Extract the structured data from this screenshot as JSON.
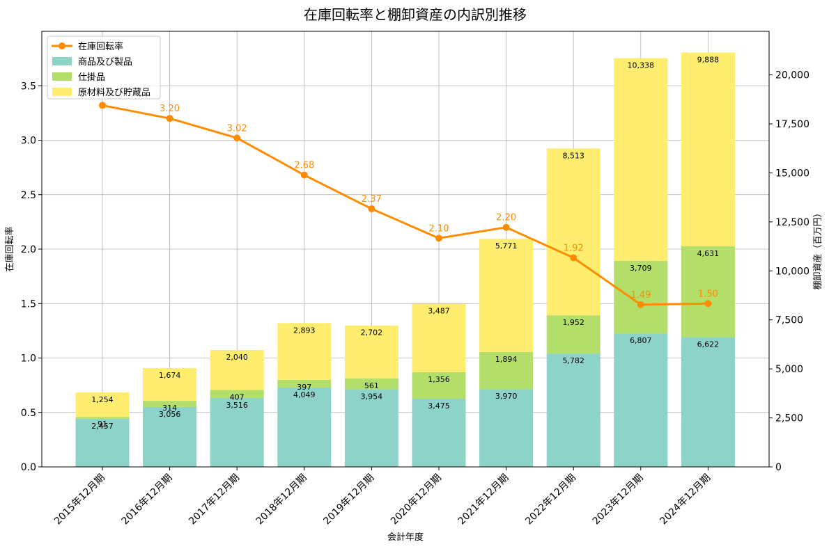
{
  "chart_data": {
    "type": "bar",
    "title": "在庫回転率と棚卸資産の内訳別推移",
    "xlabel": "会計年度",
    "ylabel_left": "在庫回転率",
    "ylabel_right": "棚卸資産（百万円）",
    "ylim_left": [
      0,
      4.0
    ],
    "ylim_right": [
      0,
      22222
    ],
    "yticks_left": [
      0.0,
      0.5,
      1.0,
      1.5,
      2.0,
      2.5,
      3.0,
      3.5
    ],
    "yticks_left_labels": [
      "0.0",
      "0.5",
      "1.0",
      "1.5",
      "2.0",
      "2.5",
      "3.0",
      "3.5"
    ],
    "yticks_right": [
      0,
      2500,
      5000,
      7500,
      10000,
      12500,
      15000,
      17500,
      20000
    ],
    "yticks_right_labels": [
      "0",
      "2,500",
      "5,000",
      "7,500",
      "10,000",
      "12,500",
      "15,000",
      "17,500",
      "20,000"
    ],
    "grid": true,
    "legend_position": "top-left",
    "categories": [
      "2015年12月期",
      "2016年12月期",
      "2017年12月期",
      "2018年12月期",
      "2019年12月期",
      "2020年12月期",
      "2021年12月期",
      "2022年12月期",
      "2023年12月期",
      "2024年12月期"
    ],
    "stacked_series": [
      {
        "name": "商品及び製品",
        "color": "#8dd3c7",
        "values": [
          2457,
          3056,
          3516,
          4049,
          3954,
          3475,
          3970,
          5782,
          6807,
          6622
        ],
        "labels": [
          "2,457",
          "3,056",
          "3,516",
          "4,049",
          "3,954",
          "3,475",
          "3,970",
          "5,782",
          "6,807",
          "6,622"
        ]
      },
      {
        "name": "仕掛品",
        "color": "#b3de69",
        "values": [
          91,
          314,
          407,
          397,
          561,
          1356,
          1894,
          1952,
          3709,
          4631
        ],
        "labels": [
          "91",
          "314",
          "407",
          "397",
          "561",
          "1,356",
          "1,894",
          "1,952",
          "3,709",
          "4,631"
        ]
      },
      {
        "name": "原材料及び貯蔵品",
        "color": "#ffed6f",
        "values": [
          1254,
          1674,
          2040,
          2893,
          2702,
          3487,
          5771,
          8513,
          10338,
          9888
        ],
        "labels": [
          "1,254",
          "1,674",
          "2,040",
          "2,893",
          "2,702",
          "3,487",
          "5,771",
          "8,513",
          "10,338",
          "9,888"
        ]
      }
    ],
    "line_series": {
      "name": "在庫回転率",
      "color": "#ff8c00",
      "values": [
        3.32,
        3.2,
        3.02,
        2.68,
        2.37,
        2.1,
        2.2,
        1.92,
        1.49,
        1.5
      ],
      "labels": [
        "",
        "3.20",
        "3.02",
        "2.68",
        "2.37",
        "2.10",
        "2.20",
        "1.92",
        "1.49",
        "1.50"
      ]
    }
  }
}
